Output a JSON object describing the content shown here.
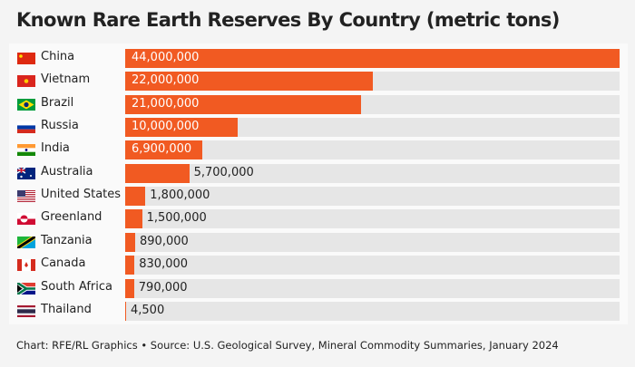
{
  "chart_data": {
    "type": "bar",
    "orientation": "horizontal",
    "title": "Known Rare Earth Reserves By Country (metric tons)",
    "categories": [
      "China",
      "Vietnam",
      "Brazil",
      "Russia",
      "India",
      "Australia",
      "United States",
      "Greenland",
      "Tanzania",
      "Canada",
      "South Africa",
      "Thailand"
    ],
    "values": [
      44000000,
      22000000,
      21000000,
      10000000,
      6900000,
      5700000,
      1800000,
      1500000,
      890000,
      830000,
      790000,
      4500
    ],
    "value_labels": [
      "44,000,000",
      "22,000,000",
      "21,000,000",
      "10,000,000",
      "6,900,000",
      "5,700,000",
      "1,800,000",
      "1,500,000",
      "890,000",
      "830,000",
      "790,000",
      "4,500"
    ],
    "flags": [
      "china-flag",
      "vietnam-flag",
      "brazil-flag",
      "russia-flag",
      "india-flag",
      "australia-flag",
      "united-states-flag",
      "greenland-flag",
      "tanzania-flag",
      "canada-flag",
      "south-africa-flag",
      "thailand-flag"
    ],
    "xlim": [
      0,
      44000000
    ],
    "grid": false,
    "bar_color": "#f15a22",
    "track_color": "#e6e6e6"
  },
  "footer": "Chart: RFE/RL Graphics • Source: U.S. Geological Survey, Mineral Commodity Summaries, January 2024"
}
